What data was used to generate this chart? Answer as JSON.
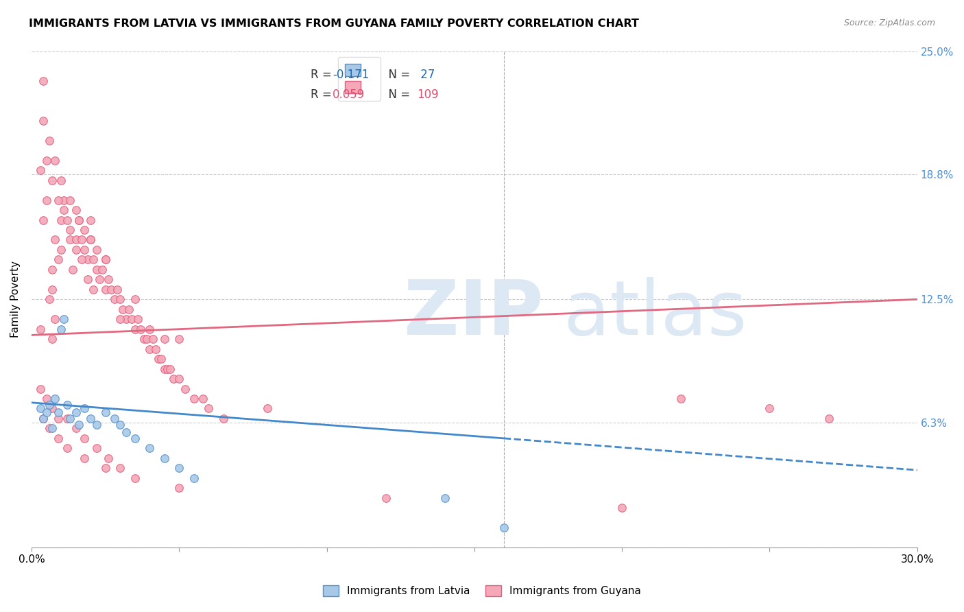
{
  "title": "IMMIGRANTS FROM LATVIA VS IMMIGRANTS FROM GUYANA FAMILY POVERTY CORRELATION CHART",
  "source": "Source: ZipAtlas.com",
  "ylabel": "Family Poverty",
  "y_ticks": [
    0.0,
    0.063,
    0.125,
    0.188,
    0.25
  ],
  "y_tick_labels": [
    "",
    "6.3%",
    "12.5%",
    "18.8%",
    "25.0%"
  ],
  "x_ticks": [
    0.0,
    0.05,
    0.1,
    0.15,
    0.2,
    0.25,
    0.3
  ],
  "x_tick_labels": [
    "0.0%",
    "",
    "",
    "",
    "",
    "",
    "30.0%"
  ],
  "xlim": [
    0.0,
    0.3
  ],
  "ylim": [
    0.0,
    0.25
  ],
  "latvia_color": "#a8c8e8",
  "guyana_color": "#f4a8b8",
  "latvia_edge_color": "#5590c8",
  "guyana_edge_color": "#e06080",
  "latvia_line_color": "#4488cc",
  "guyana_line_color": "#e06880",
  "r_latvia": -0.171,
  "n_latvia": 27,
  "r_guyana": 0.059,
  "n_guyana": 109,
  "legend_label_latvia": "Immigrants from Latvia",
  "legend_label_guyana": "Immigrants from Guyana",
  "latvia_scatter_x": [
    0.003,
    0.004,
    0.005,
    0.006,
    0.007,
    0.008,
    0.009,
    0.01,
    0.011,
    0.012,
    0.013,
    0.015,
    0.016,
    0.018,
    0.02,
    0.022,
    0.025,
    0.028,
    0.03,
    0.032,
    0.035,
    0.04,
    0.045,
    0.05,
    0.055,
    0.14,
    0.16
  ],
  "latvia_scatter_y": [
    0.07,
    0.065,
    0.068,
    0.072,
    0.06,
    0.075,
    0.068,
    0.11,
    0.115,
    0.072,
    0.065,
    0.068,
    0.062,
    0.07,
    0.065,
    0.062,
    0.068,
    0.065,
    0.062,
    0.058,
    0.055,
    0.05,
    0.045,
    0.04,
    0.035,
    0.025,
    0.01
  ],
  "guyana_scatter_x": [
    0.003,
    0.004,
    0.005,
    0.006,
    0.007,
    0.007,
    0.008,
    0.008,
    0.009,
    0.01,
    0.01,
    0.011,
    0.012,
    0.013,
    0.014,
    0.015,
    0.015,
    0.016,
    0.017,
    0.018,
    0.018,
    0.019,
    0.02,
    0.02,
    0.021,
    0.022,
    0.022,
    0.023,
    0.024,
    0.025,
    0.025,
    0.026,
    0.027,
    0.028,
    0.029,
    0.03,
    0.031,
    0.032,
    0.033,
    0.034,
    0.035,
    0.036,
    0.037,
    0.038,
    0.039,
    0.04,
    0.041,
    0.042,
    0.043,
    0.044,
    0.045,
    0.046,
    0.047,
    0.048,
    0.05,
    0.052,
    0.055,
    0.058,
    0.06,
    0.065,
    0.003,
    0.005,
    0.007,
    0.009,
    0.011,
    0.013,
    0.015,
    0.017,
    0.019,
    0.021,
    0.003,
    0.005,
    0.007,
    0.009,
    0.012,
    0.015,
    0.018,
    0.022,
    0.026,
    0.03,
    0.004,
    0.006,
    0.008,
    0.01,
    0.013,
    0.016,
    0.02,
    0.025,
    0.035,
    0.045,
    0.004,
    0.006,
    0.009,
    0.012,
    0.018,
    0.025,
    0.035,
    0.05,
    0.12,
    0.2,
    0.004,
    0.007,
    0.22,
    0.25,
    0.27,
    0.03,
    0.04,
    0.05,
    0.08
  ],
  "guyana_scatter_y": [
    0.11,
    0.165,
    0.175,
    0.125,
    0.13,
    0.14,
    0.155,
    0.115,
    0.145,
    0.15,
    0.165,
    0.175,
    0.165,
    0.155,
    0.14,
    0.155,
    0.17,
    0.165,
    0.155,
    0.15,
    0.16,
    0.145,
    0.155,
    0.165,
    0.145,
    0.14,
    0.15,
    0.135,
    0.14,
    0.13,
    0.145,
    0.135,
    0.13,
    0.125,
    0.13,
    0.125,
    0.12,
    0.115,
    0.12,
    0.115,
    0.11,
    0.115,
    0.11,
    0.105,
    0.105,
    0.1,
    0.105,
    0.1,
    0.095,
    0.095,
    0.09,
    0.09,
    0.09,
    0.085,
    0.085,
    0.08,
    0.075,
    0.075,
    0.07,
    0.065,
    0.19,
    0.195,
    0.185,
    0.175,
    0.17,
    0.16,
    0.15,
    0.145,
    0.135,
    0.13,
    0.08,
    0.075,
    0.07,
    0.065,
    0.065,
    0.06,
    0.055,
    0.05,
    0.045,
    0.04,
    0.215,
    0.205,
    0.195,
    0.185,
    0.175,
    0.165,
    0.155,
    0.145,
    0.125,
    0.105,
    0.065,
    0.06,
    0.055,
    0.05,
    0.045,
    0.04,
    0.035,
    0.03,
    0.025,
    0.02,
    0.235,
    0.105,
    0.075,
    0.07,
    0.065,
    0.115,
    0.11,
    0.105,
    0.07
  ]
}
